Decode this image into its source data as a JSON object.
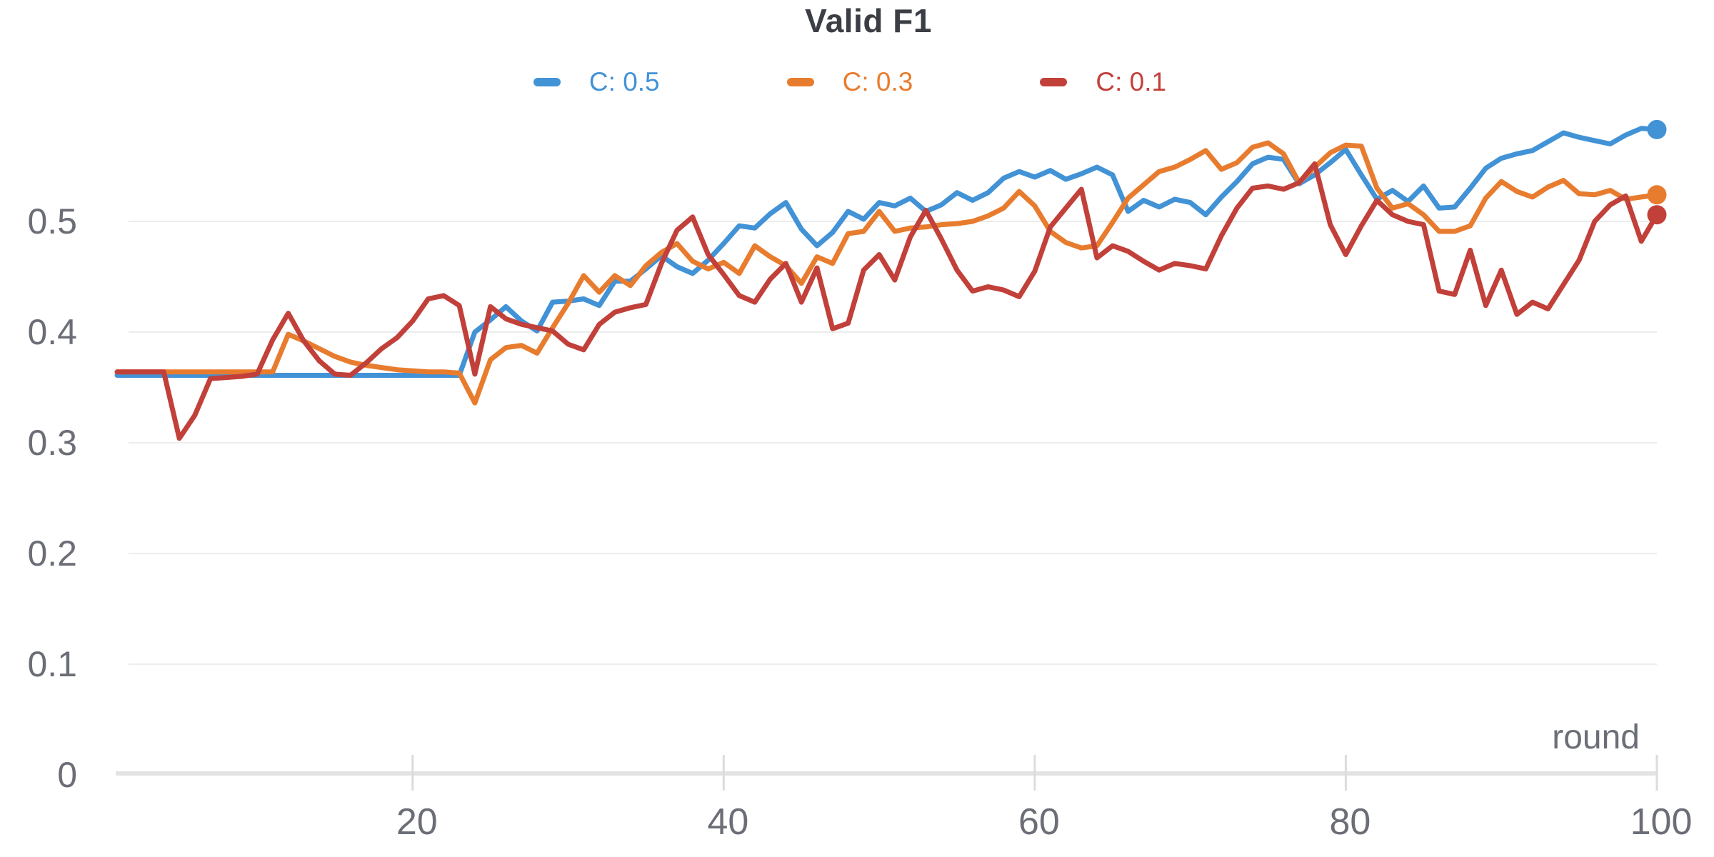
{
  "title": "Valid F1",
  "legend": [
    {
      "label": "C: 0.5",
      "color": "#4292d6"
    },
    {
      "label": "C: 0.3",
      "color": "#e87c2e"
    },
    {
      "label": "C: 0.1",
      "color": "#c2403a"
    }
  ],
  "axes": {
    "x": {
      "title": "round",
      "min": 1,
      "max": 100,
      "ticks": [
        20,
        40,
        60,
        80,
        100
      ]
    },
    "y": {
      "min": 0,
      "max": 0.63,
      "ticks": [
        0,
        0.1,
        0.2,
        0.3,
        0.4,
        0.5
      ]
    }
  },
  "chart_data": {
    "type": "line",
    "title": "Valid F1",
    "xlabel": "round",
    "ylabel": "",
    "x_start": 1,
    "xlim": [
      1,
      100
    ],
    "ylim": [
      0,
      0.63
    ],
    "grid": "horizontal",
    "legend_position": "top",
    "end_markers": true,
    "series": [
      {
        "name": "C: 0.5",
        "color": "#4292d6",
        "values": [
          0.361,
          0.361,
          0.361,
          0.361,
          0.361,
          0.361,
          0.361,
          0.361,
          0.361,
          0.361,
          0.361,
          0.361,
          0.361,
          0.361,
          0.361,
          0.361,
          0.361,
          0.361,
          0.361,
          0.361,
          0.361,
          0.361,
          0.361,
          0.4,
          0.411,
          0.423,
          0.41,
          0.401,
          0.427,
          0.428,
          0.43,
          0.424,
          0.446,
          0.446,
          0.457,
          0.469,
          0.459,
          0.453,
          0.465,
          0.48,
          0.496,
          0.494,
          0.507,
          0.517,
          0.493,
          0.478,
          0.49,
          0.509,
          0.502,
          0.517,
          0.514,
          0.521,
          0.509,
          0.515,
          0.526,
          0.519,
          0.526,
          0.539,
          0.545,
          0.54,
          0.546,
          0.538,
          0.543,
          0.549,
          0.542,
          0.509,
          0.519,
          0.513,
          0.52,
          0.517,
          0.506,
          0.522,
          0.536,
          0.552,
          0.558,
          0.556,
          0.534,
          0.542,
          0.553,
          0.565,
          0.542,
          0.52,
          0.528,
          0.518,
          0.532,
          0.512,
          0.513,
          0.53,
          0.548,
          0.557,
          0.561,
          0.564,
          0.572,
          0.58,
          0.576,
          0.573,
          0.57,
          0.578,
          0.584,
          0.583
        ]
      },
      {
        "name": "C: 0.3",
        "color": "#e87c2e",
        "values": [
          0.364,
          0.364,
          0.364,
          0.364,
          0.364,
          0.364,
          0.364,
          0.364,
          0.364,
          0.364,
          0.364,
          0.398,
          0.392,
          0.385,
          0.378,
          0.373,
          0.37,
          0.368,
          0.366,
          0.365,
          0.364,
          0.364,
          0.363,
          0.336,
          0.375,
          0.386,
          0.388,
          0.381,
          0.404,
          0.426,
          0.451,
          0.436,
          0.451,
          0.442,
          0.46,
          0.472,
          0.48,
          0.464,
          0.457,
          0.463,
          0.453,
          0.478,
          0.468,
          0.46,
          0.444,
          0.468,
          0.462,
          0.489,
          0.491,
          0.509,
          0.491,
          0.494,
          0.495,
          0.497,
          0.498,
          0.5,
          0.505,
          0.512,
          0.527,
          0.514,
          0.491,
          0.481,
          0.476,
          0.478,
          0.499,
          0.521,
          0.533,
          0.545,
          0.549,
          0.556,
          0.564,
          0.547,
          0.553,
          0.567,
          0.571,
          0.561,
          0.535,
          0.549,
          0.562,
          0.569,
          0.568,
          0.53,
          0.512,
          0.516,
          0.506,
          0.491,
          0.491,
          0.496,
          0.521,
          0.536,
          0.527,
          0.522,
          0.531,
          0.537,
          0.525,
          0.524,
          0.528,
          0.52,
          0.522,
          0.524
        ]
      },
      {
        "name": "C: 0.1",
        "color": "#c2403a",
        "values": [
          0.364,
          0.364,
          0.364,
          0.364,
          0.304,
          0.325,
          0.358,
          0.359,
          0.36,
          0.362,
          0.393,
          0.417,
          0.392,
          0.374,
          0.362,
          0.361,
          0.372,
          0.385,
          0.395,
          0.41,
          0.43,
          0.433,
          0.424,
          0.362,
          0.423,
          0.412,
          0.407,
          0.404,
          0.401,
          0.389,
          0.384,
          0.407,
          0.418,
          0.422,
          0.425,
          0.462,
          0.492,
          0.504,
          0.47,
          0.452,
          0.433,
          0.427,
          0.448,
          0.462,
          0.427,
          0.458,
          0.403,
          0.408,
          0.456,
          0.47,
          0.447,
          0.486,
          0.51,
          0.484,
          0.456,
          0.437,
          0.441,
          0.438,
          0.432,
          0.455,
          0.495,
          0.512,
          0.529,
          0.467,
          0.478,
          0.473,
          0.464,
          0.456,
          0.462,
          0.46,
          0.457,
          0.487,
          0.512,
          0.53,
          0.532,
          0.529,
          0.535,
          0.552,
          0.497,
          0.47,
          0.496,
          0.519,
          0.506,
          0.5,
          0.497,
          0.437,
          0.434,
          0.474,
          0.424,
          0.456,
          0.416,
          0.427,
          0.421,
          0.443,
          0.465,
          0.5,
          0.515,
          0.523,
          0.482,
          0.506
        ]
      }
    ]
  }
}
